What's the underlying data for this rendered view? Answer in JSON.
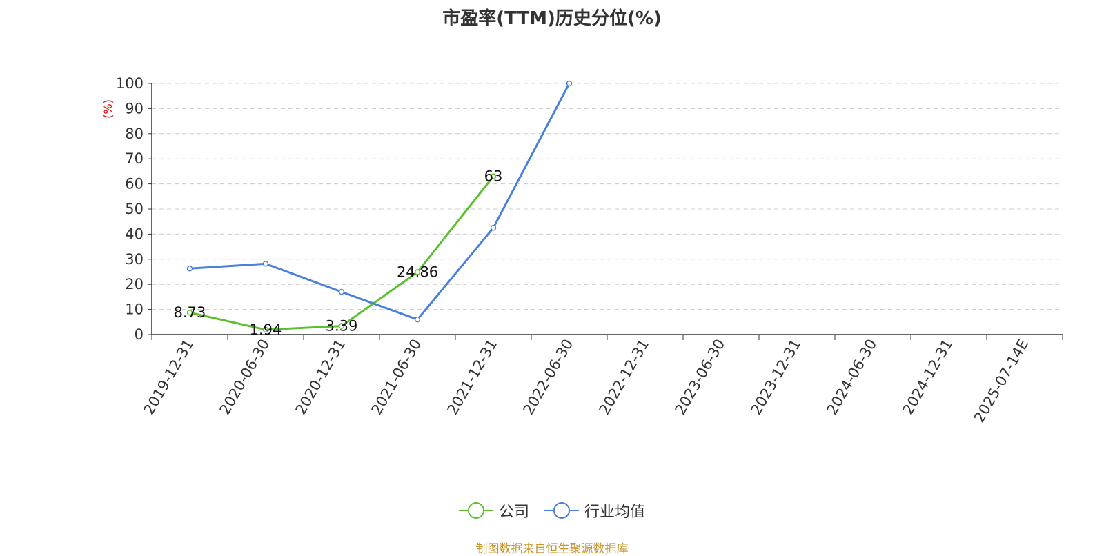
{
  "title": "市盈率(TTM)历史分位(%)",
  "source": "制图数据来自恒生聚源数据库",
  "chart_data": {
    "type": "line",
    "title": "市盈率(TTM)历史分位(%)",
    "ylabel": "(%)",
    "xlabel": "",
    "ylim": [
      0,
      100
    ],
    "yticks": [
      0,
      10,
      20,
      30,
      40,
      50,
      60,
      70,
      80,
      90,
      100
    ],
    "grid": true,
    "legend_position": "bottom",
    "categories": [
      "2019-12-31",
      "2020-06-30",
      "2020-12-31",
      "2021-06-30",
      "2021-12-31",
      "2022-06-30",
      "2022-12-31",
      "2023-06-30",
      "2023-12-31",
      "2024-06-30",
      "2024-12-31",
      "2025-07-14E"
    ],
    "series": [
      {
        "name": "公司",
        "color": "#5cc02e",
        "values": [
          8.73,
          1.94,
          3.39,
          24.86,
          63,
          null,
          null,
          null,
          null,
          null,
          null,
          null
        ],
        "labels": [
          "8.73",
          "1.94",
          "3.39",
          "24.86",
          "63"
        ]
      },
      {
        "name": "行业均值",
        "color": "#4a7fdc",
        "values": [
          26.3,
          28.2,
          17,
          6,
          42.5,
          100,
          null,
          null,
          null,
          null,
          null,
          null
        ]
      }
    ]
  }
}
